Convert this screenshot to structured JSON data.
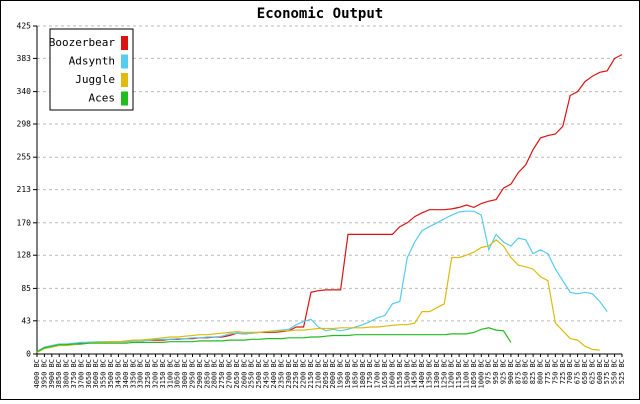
{
  "chart_data": {
    "type": "line",
    "title": "Economic Output",
    "categories": [
      "4000 BC",
      "3950 BC",
      "3900 BC",
      "3850 BC",
      "3800 BC",
      "3750 BC",
      "3700 BC",
      "3650 BC",
      "3600 BC",
      "3550 BC",
      "3500 BC",
      "3450 BC",
      "3400 BC",
      "3350 BC",
      "3300 BC",
      "3250 BC",
      "3200 BC",
      "3150 BC",
      "3100 BC",
      "3050 BC",
      "3000 BC",
      "2950 BC",
      "2900 BC",
      "2850 BC",
      "2800 BC",
      "2750 BC",
      "2700 BC",
      "2650 BC",
      "2600 BC",
      "2550 BC",
      "2500 BC",
      "2450 BC",
      "2400 BC",
      "2350 BC",
      "2300 BC",
      "2250 BC",
      "2200 BC",
      "2150 BC",
      "2100 BC",
      "2050 BC",
      "2000 BC",
      "1950 BC",
      "1900 BC",
      "1850 BC",
      "1800 BC",
      "1750 BC",
      "1700 BC",
      "1650 BC",
      "1600 BC",
      "1550 BC",
      "1500 BC",
      "1450 BC",
      "1400 BC",
      "1350 BC",
      "1300 BC",
      "1250 BC",
      "1200 BC",
      "1150 BC",
      "1100 BC",
      "1050 BC",
      "1000 BC",
      "975 BC",
      "950 BC",
      "925 BC",
      "900 BC",
      "875 BC",
      "850 BC",
      "825 BC",
      "800 BC",
      "775 BC",
      "750 BC",
      "725 BC",
      "700 BC",
      "675 BC",
      "650 BC",
      "625 BC",
      "600 BC",
      "575 BC",
      "550 BC",
      "525 BC"
    ],
    "series": [
      {
        "name": "Boozerbear",
        "color": "#dd1111",
        "values": [
          3,
          8,
          10,
          12,
          12,
          13,
          14,
          15,
          15,
          15,
          16,
          16,
          16,
          17,
          17,
          18,
          18,
          18,
          19,
          19,
          20,
          20,
          21,
          21,
          22,
          22,
          24,
          27,
          26,
          27,
          28,
          28,
          28,
          29,
          30,
          35,
          35,
          80,
          82,
          83,
          83,
          83,
          155,
          155,
          155,
          155,
          155,
          155,
          155,
          165,
          170,
          178,
          183,
          187,
          187,
          187,
          188,
          190,
          193,
          190,
          195,
          198,
          200,
          215,
          220,
          235,
          245,
          265,
          280,
          283,
          285,
          295,
          335,
          340,
          353,
          360,
          365,
          367,
          383,
          388
        ]
      },
      {
        "name": "Adsynth",
        "color": "#55ccee",
        "values": [
          3,
          9,
          11,
          13,
          13,
          14,
          15,
          15,
          16,
          16,
          16,
          16,
          16,
          17,
          17,
          18,
          19,
          19,
          19,
          20,
          20,
          21,
          21,
          22,
          22,
          23,
          26,
          27,
          26,
          27,
          28,
          29,
          30,
          31,
          32,
          38,
          42,
          45,
          35,
          30,
          32,
          30,
          32,
          35,
          38,
          42,
          47,
          50,
          65,
          68,
          125,
          145,
          160,
          165,
          170,
          175,
          180,
          184,
          185,
          185,
          180,
          135,
          155,
          145,
          140,
          150,
          148,
          130,
          135,
          130,
          110,
          95,
          80,
          78,
          80,
          78,
          68,
          55,
          null,
          null
        ]
      },
      {
        "name": "Juggle",
        "color": "#ddbb11",
        "values": [
          2,
          7,
          9,
          11,
          11,
          12,
          13,
          14,
          15,
          15,
          16,
          16,
          17,
          18,
          18,
          19,
          20,
          21,
          22,
          22,
          23,
          24,
          25,
          25,
          26,
          27,
          28,
          29,
          28,
          28,
          28,
          29,
          29,
          30,
          30,
          31,
          31,
          32,
          33,
          33,
          33,
          34,
          34,
          34,
          34,
          35,
          35,
          36,
          37,
          38,
          38,
          40,
          55,
          55,
          60,
          65,
          125,
          125,
          128,
          132,
          138,
          140,
          148,
          140,
          125,
          115,
          113,
          110,
          100,
          95,
          40,
          30,
          20,
          18,
          10,
          6,
          5,
          null,
          null,
          null
        ]
      },
      {
        "name": "Aces",
        "color": "#22bb22",
        "values": [
          3,
          8,
          10,
          12,
          12,
          13,
          13,
          14,
          14,
          14,
          14,
          14,
          14,
          15,
          15,
          15,
          15,
          15,
          16,
          16,
          16,
          16,
          17,
          17,
          17,
          17,
          18,
          18,
          18,
          19,
          19,
          20,
          20,
          20,
          21,
          21,
          21,
          22,
          22,
          23,
          24,
          24,
          24,
          25,
          25,
          25,
          25,
          25,
          25,
          25,
          25,
          25,
          25,
          25,
          25,
          25,
          26,
          26,
          26,
          28,
          32,
          34,
          31,
          30,
          15,
          null,
          null,
          null,
          null,
          null,
          null,
          null,
          null,
          null,
          null,
          null,
          null,
          null,
          null,
          null
        ]
      }
    ],
    "ylim": [
      0,
      425
    ],
    "yticks": [
      0,
      43,
      85,
      128,
      170,
      213,
      255,
      298,
      340,
      383,
      425
    ],
    "grid": true,
    "legend": "top-left"
  }
}
